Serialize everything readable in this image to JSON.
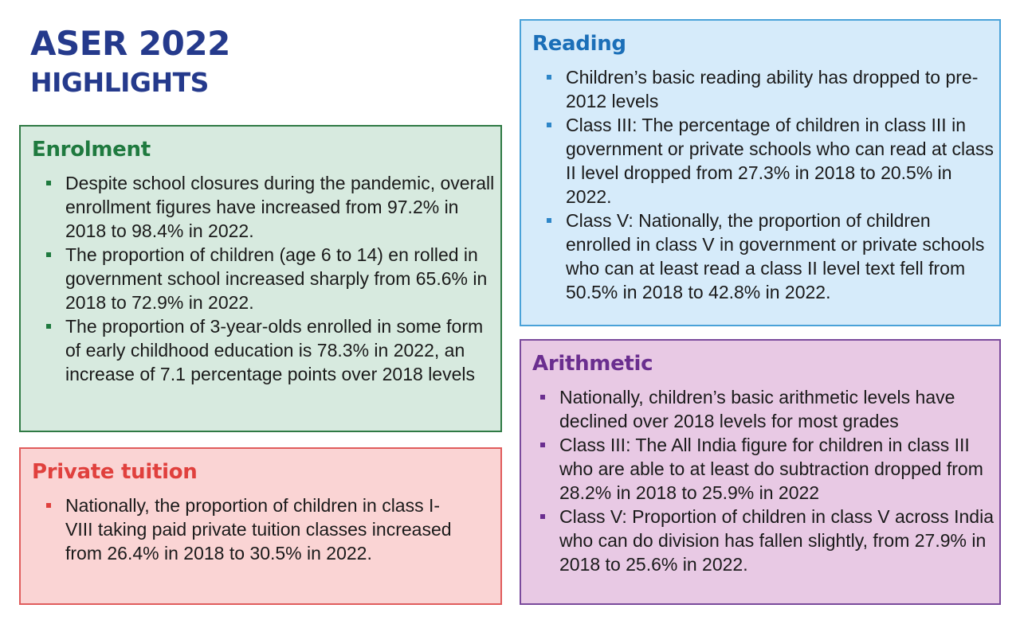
{
  "header": {
    "title_line1": "ASER 2022",
    "title_line2": "HIGHLIGHTS"
  },
  "enrolment": {
    "heading": "Enrolment",
    "items": [
      "Despite school closures during the pandemic, overall enrollment figures have increased from 97.2% in 2018 to 98.4% in 2022.",
      "The proportion of children (age 6 to 14) en rolled in government school increased sharply from 65.6% in 2018 to 72.9% in 2022.",
      "The proportion of 3-year-olds enrolled in some form of early childhood education is 78.3% in 2022, an increase of 7.1 percentage points over 2018 levels"
    ]
  },
  "private_tuition": {
    "heading": "Private tuition",
    "items": [
      "Nationally, the proportion of children in class I-VIII taking paid private tuition classes increased from 26.4% in 2018 to 30.5% in 2022."
    ]
  },
  "reading": {
    "heading": "Reading",
    "items": [
      "Children’s basic reading ability has dropped to pre-2012 levels",
      "Class III: The percentage of children in class III in government or private schools who can read at class II level dropped from 27.3% in 2018 to 20.5% in 2022.",
      "Class V: Nationally, the proportion of children enrolled in class V in government or private schools who can at least read a class II level text fell from 50.5% in 2018 to 42.8% in 2022."
    ]
  },
  "arithmetic": {
    "heading": "Arithmetic",
    "items": [
      "Nationally, children’s basic arithmetic levels have declined over 2018 levels for most grades",
      "Class III: The All India figure for children in class III who are able to at least do subtraction dropped from 28.2% in 2018 to 25.9% in 2022",
      "Class V: Proportion of children in class V across India who can do division has fallen slightly, from 27.9% in 2018 to 25.6% in 2022."
    ]
  },
  "colors": {
    "title": "#253a8c",
    "enrolment": "#1f7a3f",
    "private_tuition": "#e0403d",
    "reading": "#1b6fb8",
    "arithmetic": "#6a2e8f"
  }
}
